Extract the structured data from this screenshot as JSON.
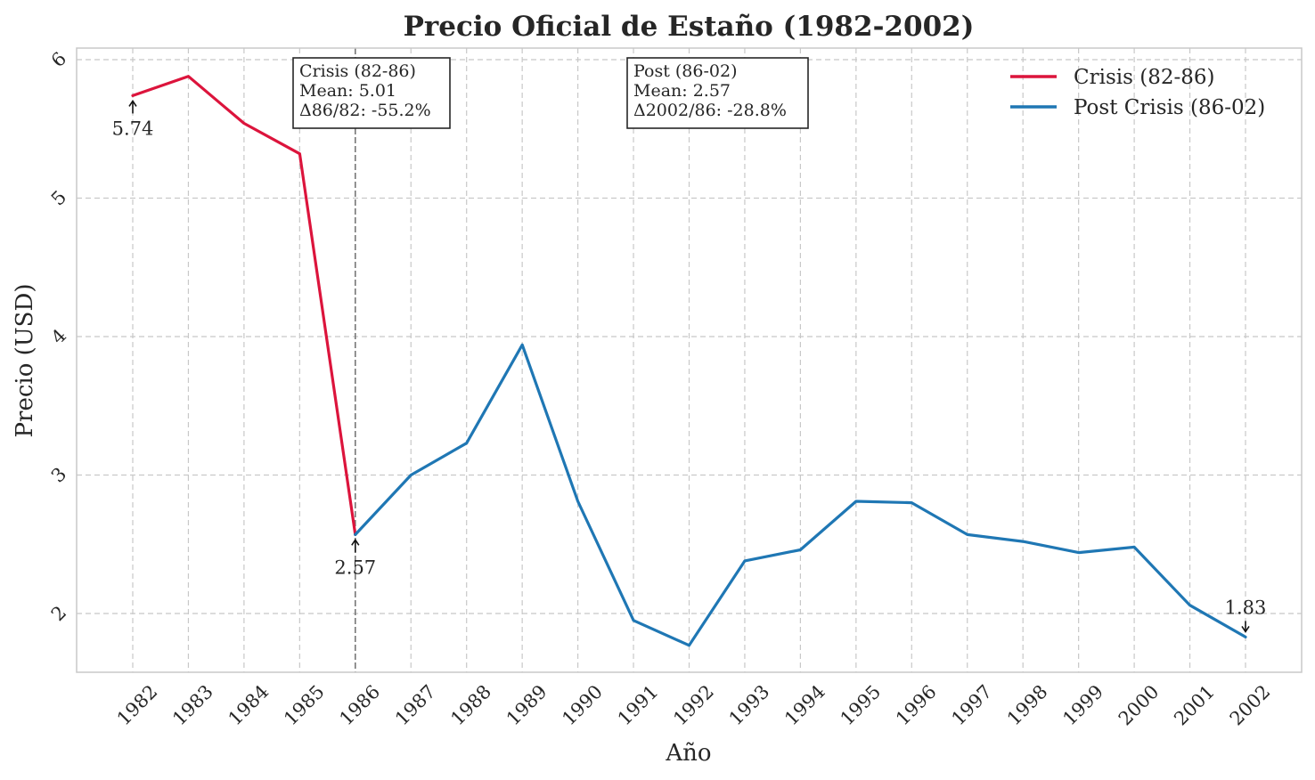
{
  "chart_data": {
    "type": "line",
    "title": "Precio Oficial de Estaño (1982-2002)",
    "xlabel": "Año",
    "ylabel": "Precio (USD)",
    "categories": [
      "1982",
      "1983",
      "1984",
      "1985",
      "1986",
      "1987",
      "1988",
      "1989",
      "1990",
      "1991",
      "1992",
      "1993",
      "1994",
      "1995",
      "1996",
      "1997",
      "1998",
      "1999",
      "2000",
      "2001",
      "2002"
    ],
    "ylim": [
      1.57,
      6.07
    ],
    "yticks": [
      "2",
      "3",
      "4",
      "5",
      "6"
    ],
    "grid": true,
    "legend_position": "top-right",
    "series": [
      {
        "name": "Crisis (82-86)",
        "color": "#dc143c",
        "x": [
          "1982",
          "1983",
          "1984",
          "1985",
          "1986"
        ],
        "values": [
          5.74,
          5.88,
          5.54,
          5.32,
          2.57
        ]
      },
      {
        "name": "Post Crisis (86-02)",
        "color": "#1f77b4",
        "x": [
          "1986",
          "1987",
          "1988",
          "1989",
          "1990",
          "1991",
          "1992",
          "1993",
          "1994",
          "1995",
          "1996",
          "1997",
          "1998",
          "1999",
          "2000",
          "2001",
          "2002"
        ],
        "values": [
          2.57,
          3.0,
          3.23,
          3.94,
          2.81,
          1.95,
          1.77,
          2.38,
          2.46,
          2.81,
          2.8,
          2.57,
          2.52,
          2.44,
          2.48,
          2.06,
          1.83
        ]
      }
    ],
    "vline": {
      "x": "1986",
      "color": "#777777"
    },
    "annotation_boxes": [
      {
        "lines": [
          "Crisis (82-86)",
          "Mean: 5.01",
          "Δ86/82: -55.2%"
        ]
      },
      {
        "lines": [
          "Post (86-02)",
          "Mean: 2.57",
          "Δ2002/86: -28.8%"
        ]
      }
    ],
    "point_labels": [
      {
        "x": "1982",
        "y": 5.74,
        "text": "5.74",
        "placement": "below"
      },
      {
        "x": "1986",
        "y": 2.57,
        "text": "2.57",
        "placement": "below"
      },
      {
        "x": "2002",
        "y": 1.83,
        "text": "1.83",
        "placement": "above"
      }
    ]
  }
}
